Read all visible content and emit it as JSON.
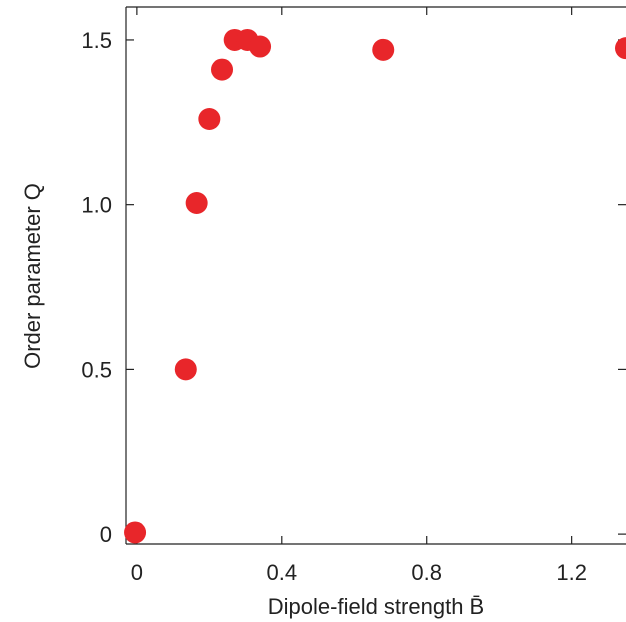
{
  "chart_data": {
    "type": "scatter",
    "xlabel": "Dipole-field strength B̄",
    "ylabel": "Order parameter Q",
    "xlim": [
      -0.03,
      1.35
    ],
    "ylim": [
      -0.03,
      1.6
    ],
    "x_ticks": [
      0,
      0.4,
      0.8,
      1.2
    ],
    "x_tick_labels": [
      "0",
      "0.4",
      "0.8",
      "1.2"
    ],
    "y_ticks": [
      0,
      0.5,
      1.0,
      1.5
    ],
    "y_tick_labels": [
      "0",
      "0.5",
      "1.0",
      "1.5"
    ],
    "grid": false,
    "marker_color": "#e8262a",
    "series": [
      {
        "x": [
          -0.005,
          0.135,
          0.165,
          0.2,
          0.235,
          0.27,
          0.305,
          0.34,
          0.68,
          1.35
        ],
        "y": [
          0.005,
          0.5,
          1.005,
          1.26,
          1.41,
          1.5,
          1.5,
          1.48,
          1.47,
          1.475
        ]
      }
    ]
  }
}
